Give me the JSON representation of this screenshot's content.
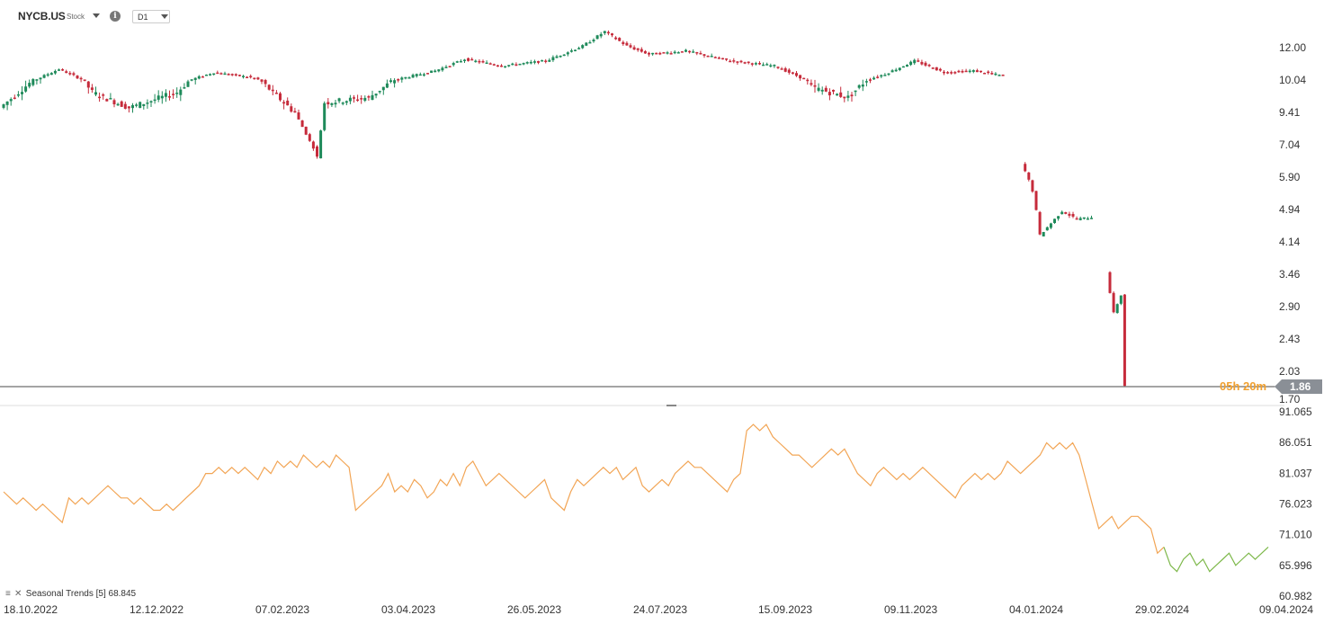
{
  "toolbar": {
    "symbol": "NYCB.US",
    "symbol_type": "Stock",
    "timeframe": "D1",
    "info_icon": "info-icon"
  },
  "colors": {
    "bull": "#1e8a5a",
    "bear": "#c62b3b",
    "indicator_orange": "#f2a555",
    "indicator_green": "#7db84a",
    "price_line": "#4a4a4a",
    "price_tag_bg": "#8a8f96",
    "countdown": "#f0a030"
  },
  "price_tag": {
    "value": "1.86",
    "countdown": "05h 20m"
  },
  "indicator": {
    "label": "Seasonal Trends [5] 68.845"
  },
  "chart_data": [
    {
      "type": "candlestick",
      "scale": "log",
      "x_tick_labels": [
        "18.10.2022",
        "12.12.2022",
        "07.02.2023",
        "03.04.2023",
        "26.05.2023",
        "24.07.2023",
        "15.09.2023",
        "09.11.2023",
        "04.01.2024",
        "29.02.2024",
        "09.04.2024"
      ],
      "y_tick_labels": [
        "12.00",
        "10.04",
        "9.41",
        "7.04",
        "5.90",
        "4.94",
        "4.14",
        "3.46",
        "2.90",
        "2.43",
        "2.03",
        "1.70"
      ],
      "ylim": [
        1.7,
        12.5
      ],
      "last_price": 1.86,
      "close_path": [
        {
          "day": 0,
          "close": 9.5
        },
        {
          "day": 10,
          "close": 10.1
        },
        {
          "day": 16,
          "close": 10.7
        },
        {
          "day": 25,
          "close": 9.8
        },
        {
          "day": 35,
          "close": 9.5
        },
        {
          "day": 48,
          "close": 9.8
        },
        {
          "day": 58,
          "close": 10.5
        },
        {
          "day": 68,
          "close": 10.2
        },
        {
          "day": 80,
          "close": 9.4
        },
        {
          "day": 84,
          "close": 7.3
        },
        {
          "day": 86,
          "close": 6.6
        },
        {
          "day": 88,
          "close": 9.6
        },
        {
          "day": 100,
          "close": 9.7
        },
        {
          "day": 110,
          "close": 10.2
        },
        {
          "day": 118,
          "close": 10.6
        },
        {
          "day": 126,
          "close": 11.3
        },
        {
          "day": 136,
          "close": 10.9
        },
        {
          "day": 148,
          "close": 11.2
        },
        {
          "day": 158,
          "close": 12.1
        },
        {
          "day": 164,
          "close": 13.0
        },
        {
          "day": 170,
          "close": 12.1
        },
        {
          "day": 176,
          "close": 11.6
        },
        {
          "day": 186,
          "close": 11.8
        },
        {
          "day": 198,
          "close": 11.2
        },
        {
          "day": 210,
          "close": 10.9
        },
        {
          "day": 220,
          "close": 9.9
        },
        {
          "day": 230,
          "close": 9.7
        },
        {
          "day": 240,
          "close": 10.4
        },
        {
          "day": 248,
          "close": 11.2
        },
        {
          "day": 256,
          "close": 10.5
        },
        {
          "day": 264,
          "close": 10.6
        },
        {
          "day": 272,
          "close": 10.3
        }
      ],
      "close_path_2": [
        {
          "day": 277,
          "close": 6.4
        },
        {
          "day": 280,
          "close": 5.5
        },
        {
          "day": 282,
          "close": 4.3
        },
        {
          "day": 285,
          "close": 4.6
        },
        {
          "day": 288,
          "close": 4.9
        },
        {
          "day": 292,
          "close": 4.7
        },
        {
          "day": 296,
          "close": 4.75
        }
      ],
      "close_path_3": [
        {
          "day": 300,
          "close": 3.5
        },
        {
          "day": 302,
          "close": 2.8
        },
        {
          "day": 304,
          "close": 3.1
        },
        {
          "day": 305,
          "close": 1.86
        }
      ]
    },
    {
      "type": "line",
      "y_tick_labels": [
        "91.065",
        "86.051",
        "81.037",
        "76.023",
        "71.010",
        "65.996",
        "60.982"
      ],
      "ylim": [
        60.982,
        91.065
      ],
      "values": [
        78,
        77,
        76,
        77,
        76,
        75,
        76,
        75,
        74,
        73,
        77,
        76,
        77,
        76,
        77,
        78,
        79,
        78,
        77,
        77,
        76,
        77,
        76,
        75,
        75,
        76,
        75,
        76,
        77,
        78,
        79,
        81,
        81,
        82,
        81,
        82,
        81,
        82,
        81,
        80,
        82,
        81,
        83,
        82,
        83,
        82,
        84,
        83,
        82,
        83,
        82,
        84,
        83,
        82,
        75,
        76,
        77,
        78,
        79,
        81,
        78,
        79,
        78,
        80,
        79,
        77,
        78,
        80,
        79,
        81,
        79,
        82,
        83,
        81,
        79,
        80,
        81,
        80,
        79,
        78,
        77,
        78,
        79,
        80,
        77,
        76,
        75,
        78,
        80,
        79,
        80,
        81,
        82,
        81,
        82,
        80,
        81,
        82,
        79,
        78,
        79,
        80,
        79,
        81,
        82,
        83,
        82,
        82,
        81,
        80,
        79,
        78,
        80,
        81,
        88,
        89,
        88,
        89,
        87,
        86,
        85,
        84,
        84,
        83,
        82,
        83,
        84,
        85,
        84,
        85,
        83,
        81,
        80,
        79,
        81,
        82,
        81,
        80,
        81,
        80,
        81,
        82,
        81,
        80,
        79,
        78,
        77,
        79,
        80,
        81,
        80,
        81,
        80,
        81,
        83,
        82,
        81,
        82,
        83,
        84,
        86,
        85,
        86,
        85,
        86,
        84,
        80,
        76,
        72,
        73,
        74,
        72,
        73,
        74,
        74,
        73,
        72,
        68,
        69,
        66,
        65,
        67,
        68,
        66,
        67,
        65,
        66,
        67,
        68,
        66,
        67,
        68,
        67,
        68,
        69
      ],
      "green_from_index": 178
    }
  ]
}
